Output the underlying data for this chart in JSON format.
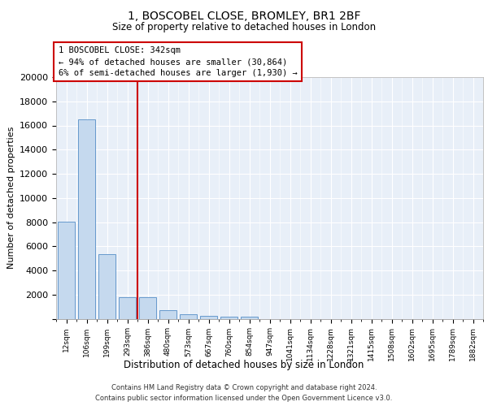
{
  "title1": "1, BOSCOBEL CLOSE, BROMLEY, BR1 2BF",
  "title2": "Size of property relative to detached houses in London",
  "xlabel": "Distribution of detached houses by size in London",
  "ylabel": "Number of detached properties",
  "categories": [
    "12sqm",
    "106sqm",
    "199sqm",
    "293sqm",
    "386sqm",
    "480sqm",
    "573sqm",
    "667sqm",
    "760sqm",
    "854sqm",
    "947sqm",
    "1041sqm",
    "1134sqm",
    "1228sqm",
    "1321sqm",
    "1415sqm",
    "1508sqm",
    "1602sqm",
    "1695sqm",
    "1789sqm",
    "1882sqm"
  ],
  "values": [
    8050,
    16500,
    5350,
    1750,
    1750,
    700,
    350,
    250,
    200,
    150,
    0,
    0,
    0,
    0,
    0,
    0,
    0,
    0,
    0,
    0,
    0
  ],
  "bar_color": "#c5d9ee",
  "bar_edge_color": "#6699cc",
  "vline_color": "#cc0000",
  "annotation_line1": "1 BOSCOBEL CLOSE: 342sqm",
  "annotation_line2": "← 94% of detached houses are smaller (30,864)",
  "annotation_line3": "6% of semi-detached houses are larger (1,930) →",
  "ylim": [
    0,
    20000
  ],
  "yticks": [
    0,
    2000,
    4000,
    6000,
    8000,
    10000,
    12000,
    14000,
    16000,
    18000,
    20000
  ],
  "bg_color": "#e8eff8",
  "grid_color": "#ffffff",
  "footer_line1": "Contains HM Land Registry data © Crown copyright and database right 2024.",
  "footer_line2": "Contains public sector information licensed under the Open Government Licence v3.0."
}
